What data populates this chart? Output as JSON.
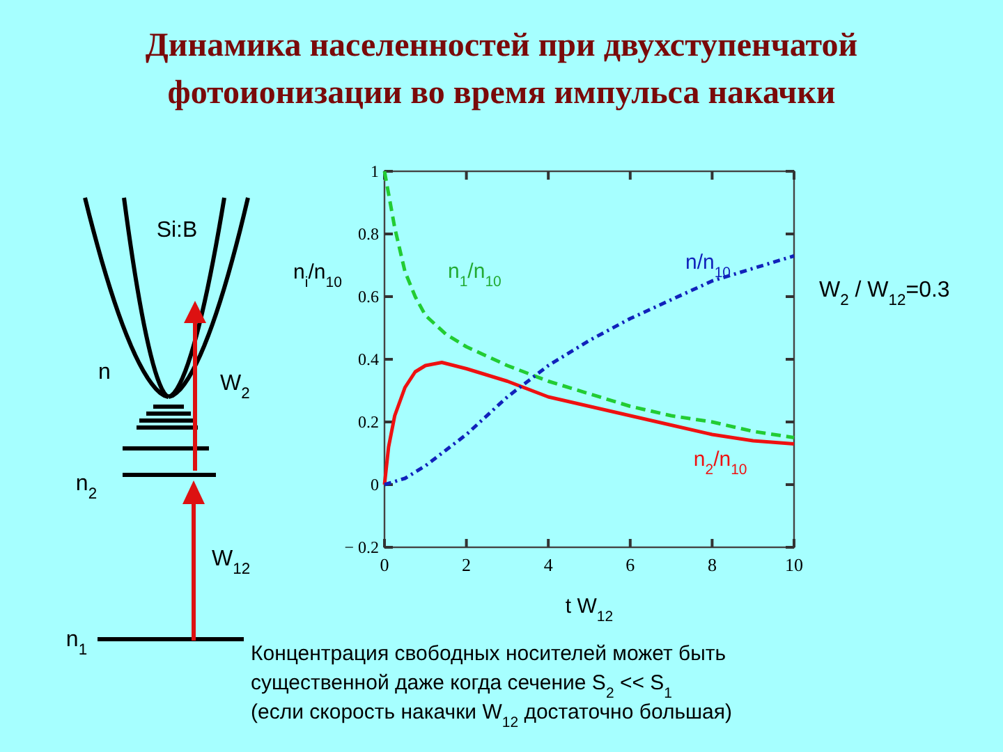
{
  "chart_data": {
    "type": "line",
    "title": "Динамика населенностей при двухступенчатой фотоионизации во время импульса накачки",
    "xlabel": "t W$_{12}$",
    "ylabel": "n$_{i}$/n$_{10}$",
    "xlim": [
      0,
      10
    ],
    "ylim": [
      -0.2,
      1
    ],
    "xticks": [
      0,
      2,
      4,
      6,
      8,
      10
    ],
    "yticks": [
      {
        "value": -0.2,
        "label": "− 0.2"
      },
      0,
      0.2,
      0.4,
      0.6,
      0.8,
      1
    ],
    "grid": false,
    "series": [
      {
        "name": "n$_{1}$/n$_{10}$",
        "color": "#22cc33",
        "line_style": "dashed",
        "x": [
          0,
          0.25,
          0.5,
          0.75,
          1,
          1.5,
          2,
          2.5,
          3,
          4,
          5,
          6,
          7,
          8,
          9,
          10
        ],
        "values": [
          1,
          0.82,
          0.68,
          0.6,
          0.54,
          0.48,
          0.44,
          0.41,
          0.38,
          0.33,
          0.29,
          0.25,
          0.22,
          0.2,
          0.17,
          0.15
        ]
      },
      {
        "name": "n$_{2}$/n$_{10}$",
        "color": "#ee1111",
        "line_style": "solid",
        "x": [
          0,
          0.1,
          0.25,
          0.5,
          0.75,
          1,
          1.4,
          2,
          3,
          4,
          5,
          6,
          7,
          8,
          9,
          10
        ],
        "values": [
          0,
          0.12,
          0.22,
          0.31,
          0.36,
          0.38,
          0.39,
          0.37,
          0.33,
          0.28,
          0.25,
          0.22,
          0.19,
          0.16,
          0.14,
          0.13
        ]
      },
      {
        "name": "n/n$_{10}$",
        "color": "#1122bb",
        "line_style": "dotted",
        "x": [
          0,
          0.5,
          1,
          1.5,
          2,
          3,
          4,
          5,
          6,
          7,
          8,
          9,
          10
        ],
        "values": [
          0,
          0.02,
          0.06,
          0.11,
          0.16,
          0.28,
          0.38,
          0.46,
          0.53,
          0.59,
          0.65,
          0.69,
          0.73
        ]
      }
    ],
    "annotations": [
      "Si:B",
      "n",
      "n$_{2}$",
      "n$_{1}$",
      "W$_{2}$",
      "W$_{12}$",
      "W$_{2}$ / W$_{12}$=0.3",
      "Концентрация свободных носителей может быть",
      "существенной даже когда сечение  S$_{2}$ << S$_{1}$",
      "(если скорость накачки W$_{12}$ достаточно большая)"
    ]
  }
}
